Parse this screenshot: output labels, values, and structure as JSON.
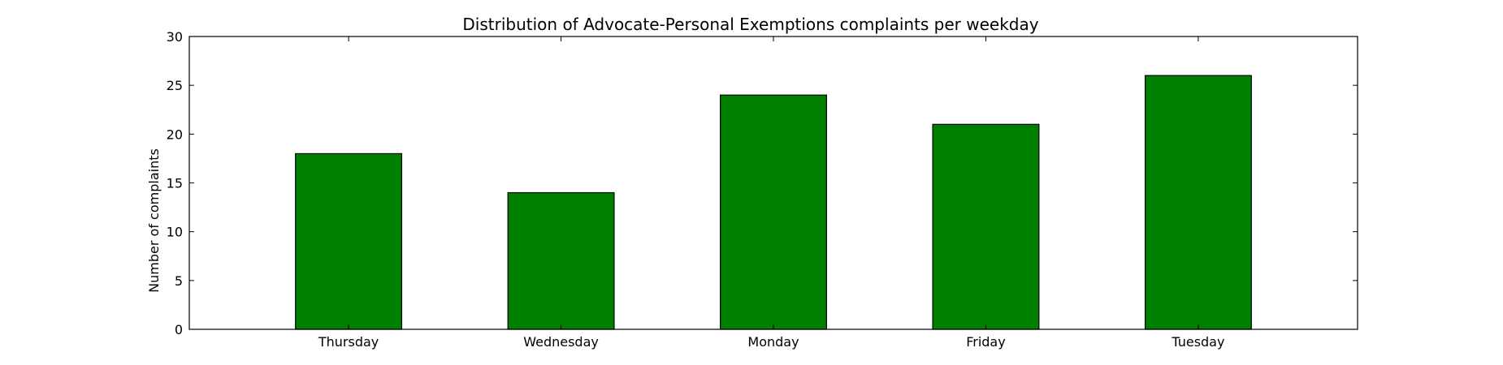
{
  "chart_data": {
    "type": "bar",
    "title": "Distribution of  Advocate-Personal Exemptions complaints per weekday",
    "xlabel": "",
    "ylabel": "Number of complaints",
    "categories": [
      "Thursday",
      "Wednesday",
      "Monday",
      "Friday",
      "Tuesday"
    ],
    "values": [
      18,
      14,
      24,
      21,
      26
    ],
    "ylim": [
      0,
      30
    ],
    "yticks": [
      0,
      5,
      10,
      15,
      20,
      25,
      30
    ],
    "grid": false,
    "legend": "none",
    "bar_color": "#008000",
    "edge_color": "#000000"
  }
}
